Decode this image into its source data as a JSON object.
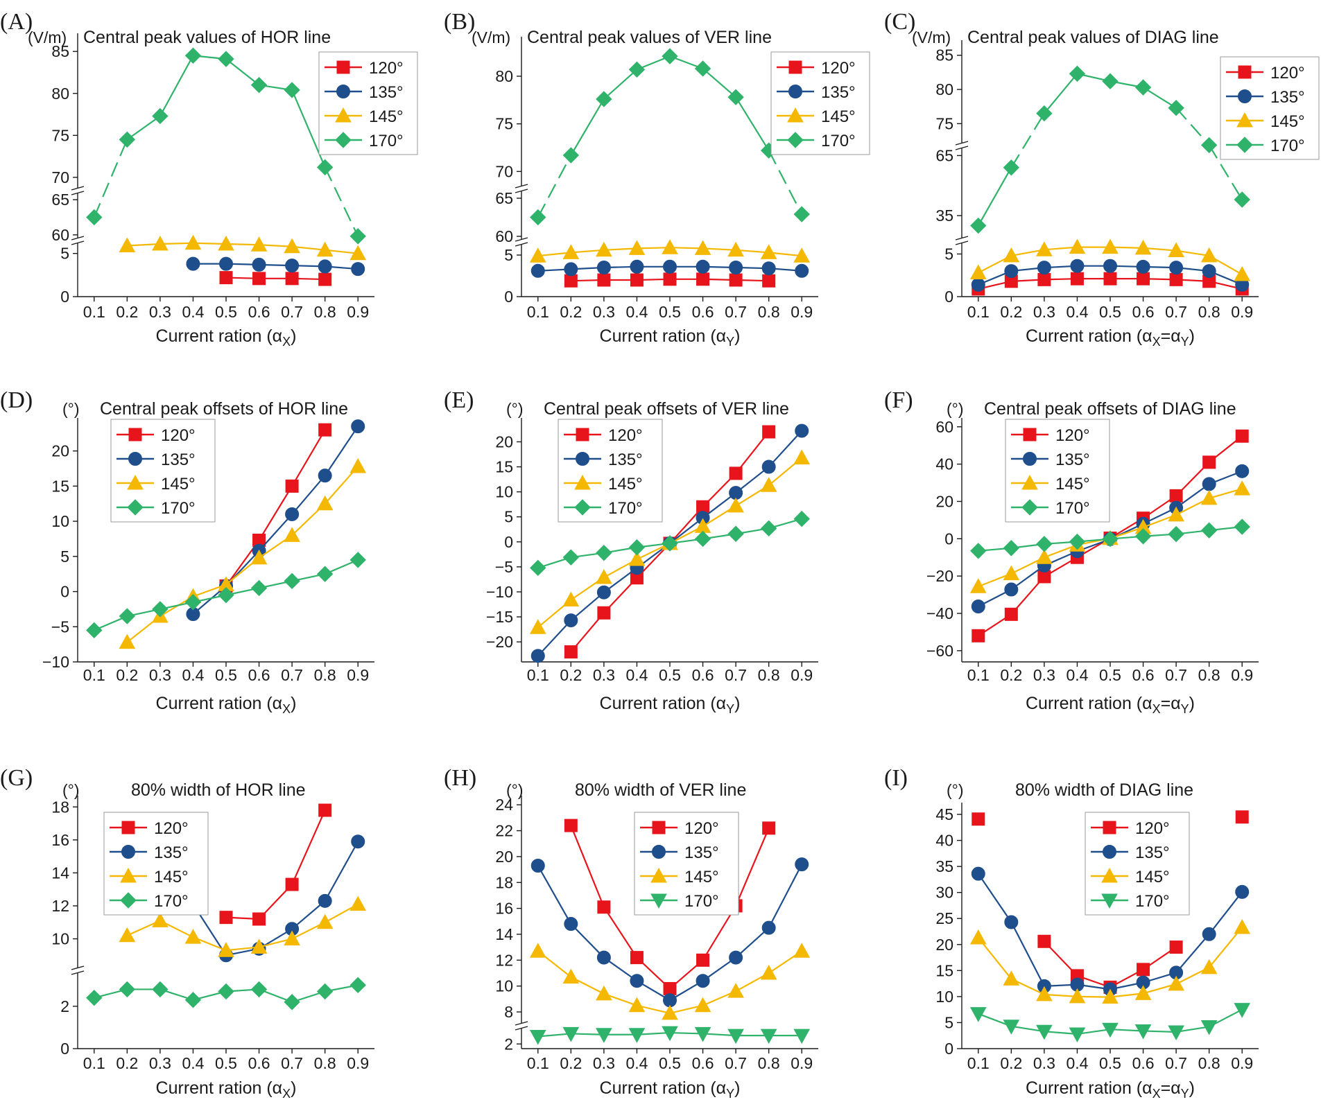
{
  "x_categories": [
    "0.1",
    "0.2",
    "0.3",
    "0.4",
    "0.5",
    "0.6",
    "0.7",
    "0.8",
    "0.9"
  ],
  "legend_labels": [
    "120°",
    "135°",
    "145°",
    "170°"
  ],
  "series_colors": {
    "120°": "#e8141c",
    "135°": "#1f4e8c",
    "145°": "#f5b800",
    "170°": "#2fb36b"
  },
  "chart_data": [
    {
      "id": "A",
      "panel_label": "(A)",
      "type": "line",
      "title": "Central peak values of HOR line",
      "unit": "(V/m)",
      "xlabel_main": "Current ration (α",
      "xlabel_sub": "X",
      "xlabel_tail": ")",
      "y_ticks": [
        "0",
        "5",
        "60",
        "65",
        "70",
        "75",
        "80",
        "85"
      ],
      "axis_break": true,
      "series": [
        {
          "name": "120°",
          "marker": "square",
          "values": [
            null,
            null,
            null,
            null,
            2.2,
            2.1,
            2.1,
            2.0,
            null
          ]
        },
        {
          "name": "135°",
          "marker": "circle",
          "values": [
            null,
            null,
            null,
            3.8,
            3.8,
            3.7,
            3.6,
            3.5,
            3.2
          ]
        },
        {
          "name": "145°",
          "marker": "triangle",
          "values": [
            null,
            5.9,
            6.1,
            6.2,
            6.1,
            6.0,
            5.8,
            5.4,
            5.0
          ]
        },
        {
          "name": "170°",
          "marker": "diamond",
          "values": [
            62.5,
            74.5,
            77.3,
            84.5,
            84.1,
            81.0,
            80.4,
            71.2,
            59.8
          ]
        }
      ]
    },
    {
      "id": "B",
      "panel_label": "(B)",
      "type": "line",
      "title": "Central peak values of VER line",
      "unit": "(V/m)",
      "xlabel_main": "Current ration (α",
      "xlabel_sub": "Y",
      "xlabel_tail": ")",
      "y_ticks": [
        "0",
        "5",
        "60",
        "65",
        "70",
        "75",
        "80"
      ],
      "axis_break": true,
      "series": [
        {
          "name": "120°",
          "marker": "square",
          "values": [
            null,
            1.9,
            2.0,
            2.0,
            2.1,
            2.1,
            2.0,
            1.9,
            null
          ]
        },
        {
          "name": "135°",
          "marker": "circle",
          "values": [
            3.1,
            3.3,
            3.5,
            3.6,
            3.6,
            3.6,
            3.5,
            3.4,
            3.1
          ]
        },
        {
          "name": "145°",
          "marker": "triangle",
          "values": [
            4.9,
            5.3,
            5.6,
            5.8,
            5.9,
            5.8,
            5.6,
            5.3,
            4.9
          ]
        },
        {
          "name": "170°",
          "marker": "diamond",
          "values": [
            62.5,
            71.7,
            77.6,
            80.7,
            82.1,
            80.8,
            77.8,
            72.2,
            62.9
          ]
        }
      ]
    },
    {
      "id": "C",
      "panel_label": "(C)",
      "type": "line",
      "title": "Central peak values of DIAG line",
      "unit": "(V/m)",
      "xlabel_main": "Current ration (α",
      "xlabel_sub": "X",
      "xlabel_mid": "=α",
      "xlabel_sub2": "Y",
      "xlabel_tail": ")",
      "y_ticks": [
        "0",
        "5",
        "35",
        "65",
        "75",
        "80",
        "85"
      ],
      "axis_break": true,
      "series": [
        {
          "name": "120°",
          "marker": "square",
          "values": [
            0.9,
            1.8,
            2.0,
            2.1,
            2.1,
            2.1,
            2.0,
            1.8,
            0.9
          ]
        },
        {
          "name": "135°",
          "marker": "circle",
          "values": [
            1.4,
            3.0,
            3.4,
            3.6,
            3.6,
            3.5,
            3.4,
            3.0,
            1.4
          ]
        },
        {
          "name": "145°",
          "marker": "triangle",
          "values": [
            2.8,
            4.8,
            5.5,
            5.8,
            5.8,
            5.7,
            5.4,
            4.8,
            2.6
          ]
        },
        {
          "name": "170°",
          "marker": "diamond",
          "values": [
            30.0,
            59.0,
            76.5,
            82.3,
            81.2,
            80.3,
            77.3,
            70.2,
            43.0
          ]
        }
      ]
    },
    {
      "id": "D",
      "panel_label": "(D)",
      "type": "line",
      "title": "Central peak offsets of HOR line",
      "unit": "(°)",
      "xlabel_main": "Current ration (α",
      "xlabel_sub": "X",
      "xlabel_tail": ")",
      "y_ticks": [
        "−10",
        "−5",
        "0",
        "5",
        "10",
        "15",
        "20"
      ],
      "ylim": [
        -10,
        24.5
      ],
      "series": [
        {
          "name": "120°",
          "marker": "square",
          "values": [
            null,
            null,
            null,
            null,
            0.8,
            7.3,
            15.0,
            23.0,
            null
          ]
        },
        {
          "name": "135°",
          "marker": "circle",
          "values": [
            null,
            null,
            null,
            -3.2,
            0.8,
            5.8,
            11.0,
            16.5,
            23.5
          ]
        },
        {
          "name": "145°",
          "marker": "triangle",
          "values": [
            null,
            -7.2,
            -3.5,
            -0.7,
            1.0,
            4.8,
            8.0,
            12.5,
            17.8
          ]
        },
        {
          "name": "170°",
          "marker": "diamond",
          "values": [
            -5.5,
            -3.5,
            -2.5,
            -1.5,
            -0.5,
            0.5,
            1.5,
            2.5,
            4.5
          ]
        }
      ]
    },
    {
      "id": "E",
      "panel_label": "(E)",
      "type": "line",
      "title": "Central peak offsets of VER line",
      "unit": "(°)",
      "xlabel_main": "Current ration (α",
      "xlabel_sub": "Y",
      "xlabel_tail": ")",
      "y_ticks": [
        "−20",
        "−15",
        "−10",
        "−5",
        "0",
        "5",
        "10",
        "15",
        "20"
      ],
      "ylim": [
        -24,
        24.5
      ],
      "series": [
        {
          "name": "120°",
          "marker": "square",
          "values": [
            null,
            -22.0,
            -14.2,
            -7.2,
            -0.3,
            7.0,
            13.7,
            22.0,
            null
          ]
        },
        {
          "name": "135°",
          "marker": "circle",
          "values": [
            -22.8,
            -15.7,
            -10.1,
            -5.2,
            -0.3,
            4.8,
            9.8,
            15.0,
            22.2
          ]
        },
        {
          "name": "145°",
          "marker": "triangle",
          "values": [
            -17.1,
            -11.6,
            -7.1,
            -3.5,
            -0.3,
            3.1,
            7.2,
            11.3,
            16.8
          ]
        },
        {
          "name": "170°",
          "marker": "diamond",
          "values": [
            -5.2,
            -3.1,
            -2.2,
            -1.1,
            -0.3,
            0.6,
            1.6,
            2.7,
            4.6
          ]
        }
      ]
    },
    {
      "id": "F",
      "panel_label": "(F)",
      "type": "line",
      "title": "Central peak offsets of DIAG line",
      "unit": "(°)",
      "xlabel_main": "Current ration (α",
      "xlabel_sub": "X",
      "xlabel_mid": "=α",
      "xlabel_sub2": "Y",
      "xlabel_tail": ")",
      "y_ticks": [
        "−60",
        "−40",
        "−20",
        "0",
        "20",
        "40",
        "60"
      ],
      "ylim": [
        -66,
        64
      ],
      "series": [
        {
          "name": "120°",
          "marker": "square",
          "values": [
            -52.0,
            -40.5,
            -20.3,
            -10.0,
            0.3,
            11.0,
            23.0,
            41.0,
            55.0
          ]
        },
        {
          "name": "135°",
          "marker": "circle",
          "values": [
            -36.3,
            -27.2,
            -14.4,
            -6.7,
            -0.2,
            8.0,
            16.6,
            29.3,
            36.2
          ]
        },
        {
          "name": "145°",
          "marker": "triangle",
          "values": [
            -25.6,
            -18.7,
            -10.0,
            -3.3,
            0.2,
            6.1,
            12.8,
            21.7,
            26.8
          ]
        },
        {
          "name": "170°",
          "marker": "diamond",
          "values": [
            -6.5,
            -5.0,
            -2.8,
            -1.6,
            -0.1,
            1.3,
            2.5,
            4.5,
            6.4
          ]
        }
      ]
    },
    {
      "id": "G",
      "panel_label": "(G)",
      "type": "line",
      "title": "80% width of HOR line",
      "unit": "(°)",
      "xlabel_main": "Current ration (α",
      "xlabel_sub": "X",
      "xlabel_tail": ")",
      "y_ticks": [
        "0",
        "2",
        "10",
        "12",
        "14",
        "16",
        "18"
      ],
      "axis_break": true,
      "series": [
        {
          "name": "120°",
          "marker": "square",
          "values": [
            null,
            null,
            null,
            null,
            11.3,
            11.2,
            13.3,
            17.8,
            null
          ]
        },
        {
          "name": "135°",
          "marker": "circle",
          "values": [
            null,
            null,
            null,
            12.1,
            9.0,
            9.4,
            10.6,
            12.3,
            15.9
          ]
        },
        {
          "name": "145°",
          "marker": "triangle",
          "values": [
            null,
            10.2,
            11.1,
            10.1,
            9.3,
            9.5,
            10.0,
            11.0,
            12.1
          ]
        },
        {
          "name": "170°",
          "marker": "diamond",
          "values": [
            2.4,
            2.8,
            2.8,
            2.3,
            2.7,
            2.8,
            2.2,
            2.7,
            3.0
          ]
        }
      ]
    },
    {
      "id": "H",
      "panel_label": "(H)",
      "type": "line",
      "title": "80% width of VER line",
      "unit": "(°)",
      "xlabel_main": "Current ration (α",
      "xlabel_sub": "Y",
      "xlabel_tail": ")",
      "y_ticks": [
        "2",
        "8",
        "10",
        "12",
        "14",
        "16",
        "18",
        "20",
        "22",
        "24"
      ],
      "axis_break": true,
      "series": [
        {
          "name": "120°",
          "marker": "square",
          "values": [
            null,
            22.4,
            16.1,
            12.2,
            9.8,
            12.0,
            16.2,
            22.2,
            null
          ]
        },
        {
          "name": "135°",
          "marker": "circle",
          "values": [
            19.3,
            14.8,
            12.2,
            10.4,
            8.9,
            10.4,
            12.2,
            14.5,
            19.4
          ]
        },
        {
          "name": "145°",
          "marker": "triangle",
          "values": [
            12.7,
            10.7,
            9.4,
            8.5,
            7.9,
            8.5,
            9.6,
            11.0,
            12.7
          ]
        },
        {
          "name": "170°",
          "marker": "triangle-down",
          "values": [
            2.8,
            3.1,
            3.0,
            3.0,
            3.2,
            3.1,
            2.9,
            2.9,
            2.9
          ]
        }
      ]
    },
    {
      "id": "I",
      "panel_label": "(I)",
      "type": "line",
      "title": "80% width of DIAG line",
      "unit": "(°)",
      "xlabel_main": "Current ration (α",
      "xlabel_sub": "X",
      "xlabel_mid": "=α",
      "xlabel_sub2": "Y",
      "xlabel_tail": ")",
      "y_ticks": [
        "0",
        "5",
        "10",
        "15",
        "20",
        "25",
        "30",
        "35",
        "40",
        "45"
      ],
      "ylim": [
        0,
        47
      ],
      "series": [
        {
          "name": "120°",
          "marker": "square",
          "values": [
            44.1,
            null,
            20.6,
            14.0,
            11.8,
            15.2,
            19.5,
            null,
            44.5
          ],
          "segments": [
            [
              2,
              6
            ]
          ]
        },
        {
          "name": "135°",
          "marker": "circle",
          "values": [
            33.6,
            24.3,
            12.0,
            12.3,
            11.4,
            12.7,
            14.6,
            22.0,
            30.1
          ]
        },
        {
          "name": "145°",
          "marker": "triangle",
          "values": [
            21.3,
            13.4,
            10.4,
            10.0,
            9.9,
            10.6,
            12.4,
            15.6,
            23.3
          ]
        },
        {
          "name": "170°",
          "marker": "triangle-down",
          "values": [
            6.7,
            4.3,
            3.3,
            2.8,
            3.7,
            3.4,
            3.2,
            4.2,
            7.5
          ]
        }
      ]
    }
  ]
}
